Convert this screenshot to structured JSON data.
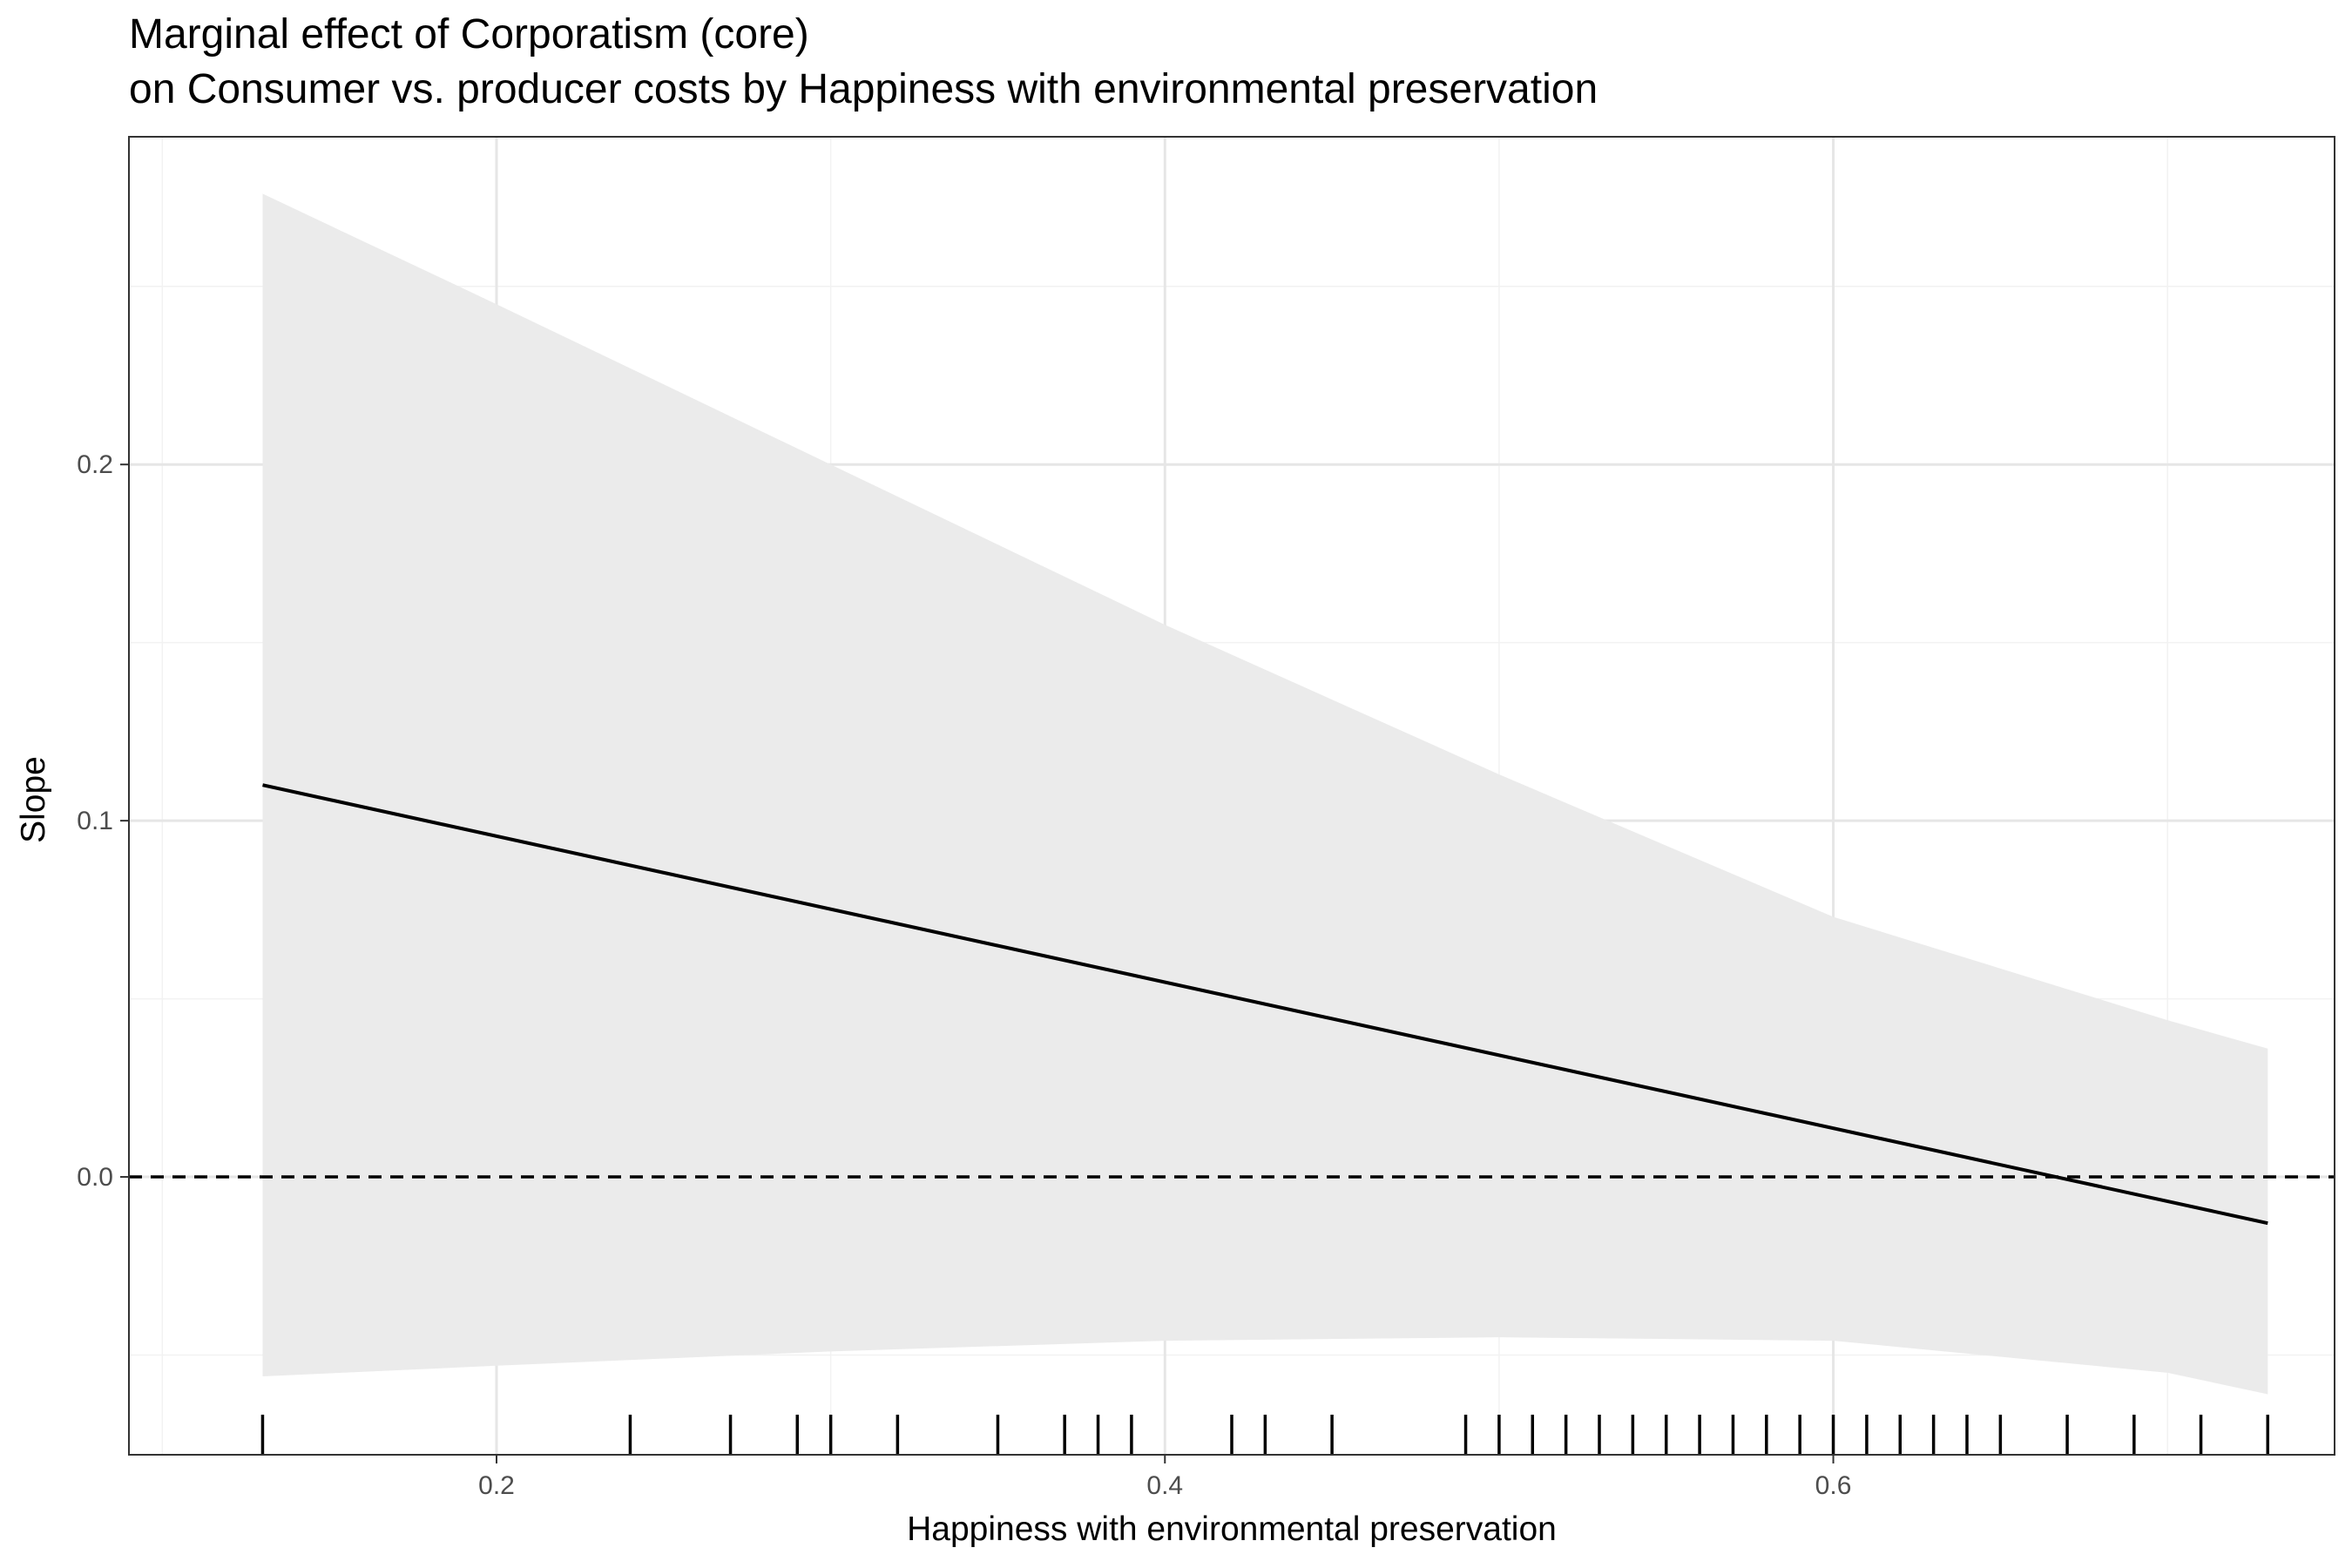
{
  "chart_data": {
    "type": "line",
    "title": "Marginal effect of Corporatism (core)",
    "subtitle": "on Consumer vs. producer costs by Happiness with environmental preservation",
    "xlabel": "Happiness with environmental preservation",
    "ylabel": "Slope",
    "xlim": [
      0.09,
      0.75
    ],
    "ylim": [
      -0.078,
      0.292
    ],
    "x_ticks": [
      0.2,
      0.4,
      0.6
    ],
    "x_tick_labels": [
      "0.2",
      "0.4",
      "0.6"
    ],
    "y_ticks": [
      0.0,
      0.1,
      0.2
    ],
    "y_tick_labels": [
      "0.0",
      "0.1",
      "0.2"
    ],
    "grid": true,
    "legend": "none",
    "reference_line": {
      "y": 0,
      "style": "dashed"
    },
    "series": [
      {
        "x": [
          0.13,
          0.73
        ],
        "y": [
          0.11,
          -0.013
        ]
      }
    ],
    "confidence_band": {
      "x": [
        0.13,
        0.2,
        0.3,
        0.4,
        0.5,
        0.6,
        0.7,
        0.73
      ],
      "upper": [
        0.276,
        0.245,
        0.2,
        0.155,
        0.113,
        0.073,
        0.044,
        0.036
      ],
      "lower": [
        -0.056,
        -0.053,
        -0.049,
        -0.046,
        -0.045,
        -0.046,
        -0.055,
        -0.061
      ]
    },
    "rug_x": [
      0.13,
      0.24,
      0.27,
      0.29,
      0.3,
      0.32,
      0.35,
      0.37,
      0.38,
      0.39,
      0.42,
      0.43,
      0.45,
      0.49,
      0.5,
      0.51,
      0.52,
      0.53,
      0.54,
      0.55,
      0.56,
      0.57,
      0.58,
      0.59,
      0.6,
      0.61,
      0.62,
      0.63,
      0.64,
      0.65,
      0.67,
      0.69,
      0.71,
      0.73
    ],
    "colors": {
      "line": "#000000",
      "band": "#ebebeb",
      "grid_major": "#e6e6e6",
      "grid_minor": "#f2f2f2",
      "panel_border": "#333333",
      "tick_label": "#4d4d4d"
    }
  }
}
